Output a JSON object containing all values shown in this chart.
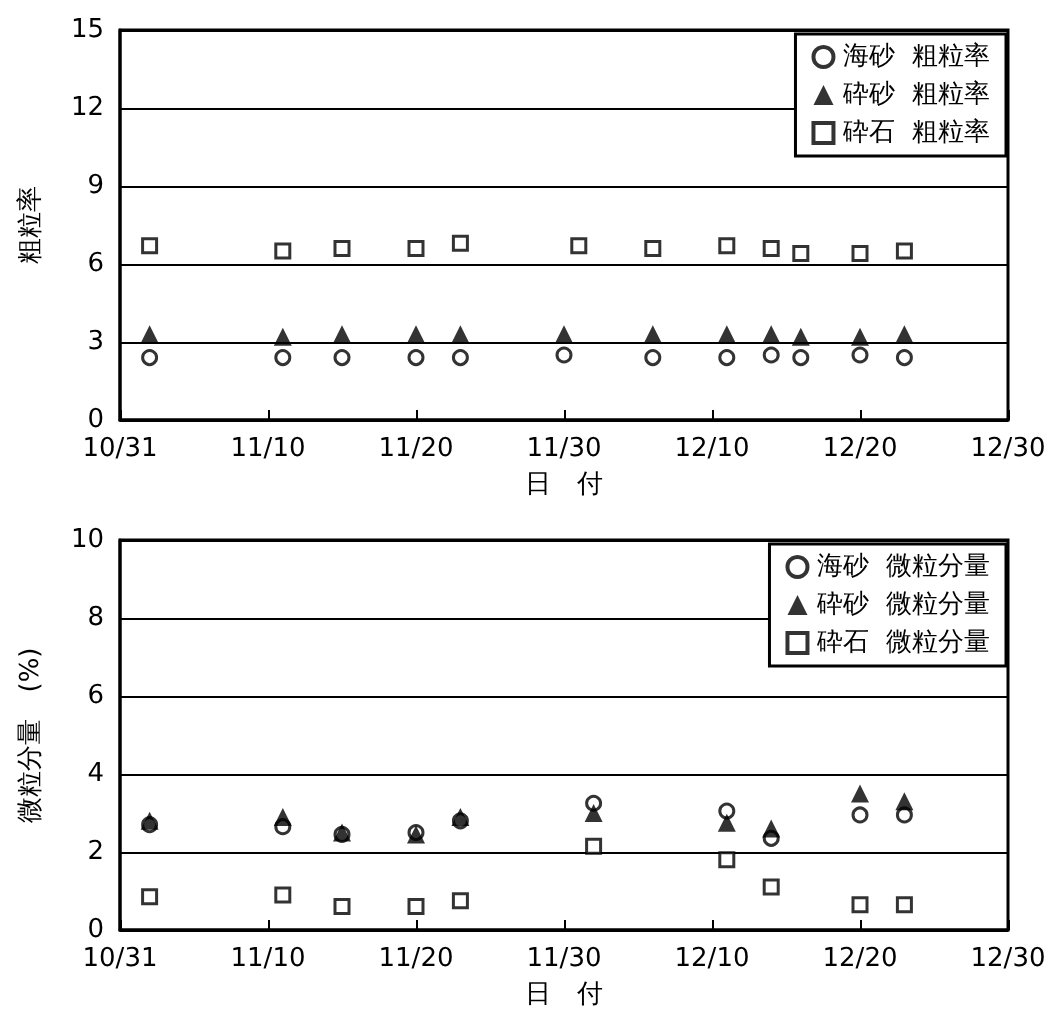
{
  "chart_data": [
    {
      "type": "scatter",
      "xlabel": "日　付",
      "ylabel": "粗粒率",
      "xlim": [
        "--10-31",
        "--12-30"
      ],
      "xticks": [
        {
          "value": "--10-31",
          "label": "10/31"
        },
        {
          "value": "--11-10",
          "label": "11/10"
        },
        {
          "value": "--11-20",
          "label": "11/20"
        },
        {
          "value": "--11-30",
          "label": "11/30"
        },
        {
          "value": "--12-10",
          "label": "12/10"
        },
        {
          "value": "--12-20",
          "label": "12/20"
        },
        {
          "value": "--12-30",
          "label": "12/30"
        }
      ],
      "ylim": [
        0,
        15
      ],
      "yticks": [
        0,
        3,
        6,
        9,
        12,
        15
      ],
      "grid": "y",
      "legend": "top right",
      "x": [
        "--11-02",
        "--11-11",
        "--11-15",
        "--11-20",
        "--11-23",
        "--11-30",
        "--12-06",
        "--12-11",
        "--12-14",
        "--12-16",
        "--12-20",
        "--12-23"
      ],
      "series": [
        {
          "name": "海砂  粗粒率",
          "color": "#000000",
          "marker": "circle",
          "values": [
            2.4,
            2.4,
            2.4,
            2.4,
            2.4,
            2.5,
            2.4,
            2.4,
            2.5,
            2.4,
            2.5,
            2.4
          ]
        },
        {
          "name": "砕砂  粗粒率",
          "color": "#000000",
          "marker": "triangle",
          "values": [
            3.3,
            3.2,
            3.3,
            3.3,
            3.3,
            3.3,
            3.3,
            3.3,
            3.3,
            3.2,
            3.2,
            3.3
          ]
        },
        {
          "name": "砕石  粗粒率",
          "color": "#000000",
          "marker": "square",
          "x": [
            "--11-02",
            "--11-11",
            "--11-15",
            "--11-20",
            "--11-23",
            "--12-01",
            "--12-06",
            "--12-11",
            "--12-14",
            "--12-16",
            "--12-20",
            "--12-23"
          ],
          "values": [
            6.7,
            6.5,
            6.6,
            6.6,
            6.8,
            6.7,
            6.6,
            6.7,
            6.6,
            6.4,
            6.4,
            6.5
          ]
        }
      ]
    },
    {
      "type": "scatter",
      "xlabel": "日　付",
      "ylabel": "微粒分量　(%)",
      "xlim": [
        "--10-31",
        "--12-30"
      ],
      "xticks": [
        {
          "value": "--10-31",
          "label": "10/31"
        },
        {
          "value": "--11-10",
          "label": "11/10"
        },
        {
          "value": "--11-20",
          "label": "11/20"
        },
        {
          "value": "--11-30",
          "label": "11/30"
        },
        {
          "value": "--12-10",
          "label": "12/10"
        },
        {
          "value": "--12-20",
          "label": "12/20"
        },
        {
          "value": "--12-30",
          "label": "12/30"
        }
      ],
      "ylim": [
        0,
        10
      ],
      "yticks": [
        0,
        2,
        4,
        6,
        8,
        10
      ],
      "grid": "y",
      "legend": "top right",
      "x": [
        "--11-02",
        "--11-11",
        "--11-15",
        "--11-20",
        "--11-23",
        "--12-02",
        "--12-11",
        "--12-14",
        "--12-20",
        "--12-23"
      ],
      "series": [
        {
          "name": "海砂  微粒分量",
          "color": "#000000",
          "marker": "circle",
          "values": [
            2.7,
            2.65,
            2.45,
            2.5,
            2.8,
            3.25,
            3.05,
            2.35,
            2.95,
            2.95
          ]
        },
        {
          "name": "砕砂  微粒分量",
          "color": "#000000",
          "marker": "triangle",
          "values": [
            2.8,
            2.9,
            2.5,
            2.45,
            2.9,
            3.0,
            2.75,
            2.6,
            3.5,
            3.3
          ]
        },
        {
          "name": "砕石  微粒分量",
          "color": "#000000",
          "marker": "square",
          "values": [
            0.85,
            0.9,
            0.6,
            0.6,
            0.75,
            2.15,
            1.8,
            1.1,
            0.65,
            0.65
          ]
        }
      ]
    }
  ]
}
